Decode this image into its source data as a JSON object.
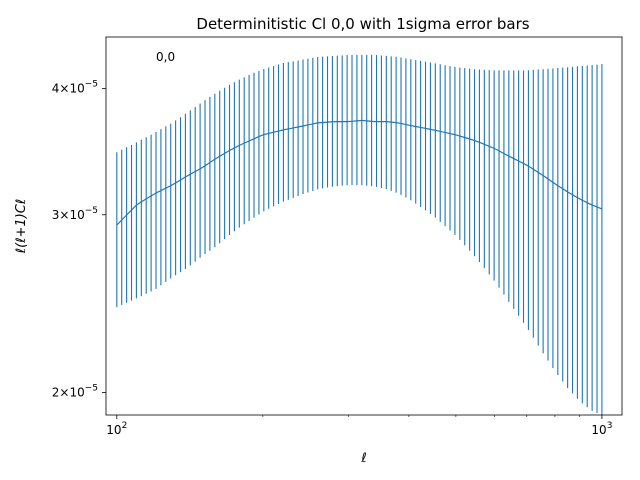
{
  "chart_data": {
    "type": "line",
    "title": "Determinitistic Cl 0,0 with 1sigma error bars",
    "xlabel": "ℓ",
    "ylabel": "ℓ(ℓ+1)Cℓ",
    "xscale": "log",
    "yscale": "log",
    "xlim": [
      95,
      1100
    ],
    "ylim": [
      1.9e-05,
      4.5e-05
    ],
    "grid": false,
    "annotation": "0,0",
    "x_ticks": [
      {
        "value": 100,
        "base": "10",
        "exp": "2"
      },
      {
        "value": 1000,
        "base": "10",
        "exp": "3"
      }
    ],
    "y_ticks": [
      {
        "value": 2e-05,
        "mant": "2",
        "exp": "−5"
      },
      {
        "value": 3e-05,
        "mant": "3",
        "exp": "−5"
      },
      {
        "value": 4e-05,
        "mant": "4",
        "exp": "−5"
      }
    ],
    "series": [
      {
        "color": "#1f77b4",
        "x": [
          100,
          110,
          120,
          130,
          140,
          150,
          160,
          170,
          180,
          190,
          200,
          220,
          240,
          260,
          280,
          300,
          320,
          340,
          360,
          380,
          400,
          450,
          500,
          550,
          600,
          650,
          700,
          750,
          800,
          850,
          900,
          950,
          1000
        ],
        "y": [
          2.93e-05,
          3.07e-05,
          3.15e-05,
          3.21e-05,
          3.28e-05,
          3.34e-05,
          3.41e-05,
          3.47e-05,
          3.52e-05,
          3.56e-05,
          3.6e-05,
          3.64e-05,
          3.67e-05,
          3.7e-05,
          3.71e-05,
          3.71e-05,
          3.72e-05,
          3.71e-05,
          3.71e-05,
          3.7e-05,
          3.68e-05,
          3.64e-05,
          3.6e-05,
          3.55e-05,
          3.49e-05,
          3.42e-05,
          3.36e-05,
          3.29e-05,
          3.22e-05,
          3.16e-05,
          3.11e-05,
          3.07e-05,
          3.04e-05
        ],
        "yerr_low": [
          2.43e-05,
          2.48e-05,
          2.53e-05,
          2.6e-05,
          2.66e-05,
          2.73e-05,
          2.79e-05,
          2.86e-05,
          2.92e-05,
          2.97e-05,
          3.02e-05,
          3.09e-05,
          3.14e-05,
          3.18e-05,
          3.2e-05,
          3.21e-05,
          3.21e-05,
          3.2e-05,
          3.18e-05,
          3.15e-05,
          3.11e-05,
          2.99e-05,
          2.86e-05,
          2.72e-05,
          2.58e-05,
          2.44e-05,
          2.32e-05,
          2.2e-05,
          2.1e-05,
          2.02e-05,
          1.96e-05,
          1.92e-05,
          1.9e-05
        ],
        "yerr_high": [
          3.46e-05,
          3.54e-05,
          3.62e-05,
          3.7e-05,
          3.79e-05,
          3.88e-05,
          3.96e-05,
          4.03e-05,
          4.09e-05,
          4.14e-05,
          4.18e-05,
          4.24e-05,
          4.27e-05,
          4.3e-05,
          4.31e-05,
          4.32e-05,
          4.32e-05,
          4.32e-05,
          4.31e-05,
          4.3e-05,
          4.28e-05,
          4.24e-05,
          4.2e-05,
          4.18e-05,
          4.17e-05,
          4.17e-05,
          4.17e-05,
          4.18e-05,
          4.19e-05,
          4.2e-05,
          4.21e-05,
          4.22e-05,
          4.23e-05
        ]
      }
    ]
  }
}
